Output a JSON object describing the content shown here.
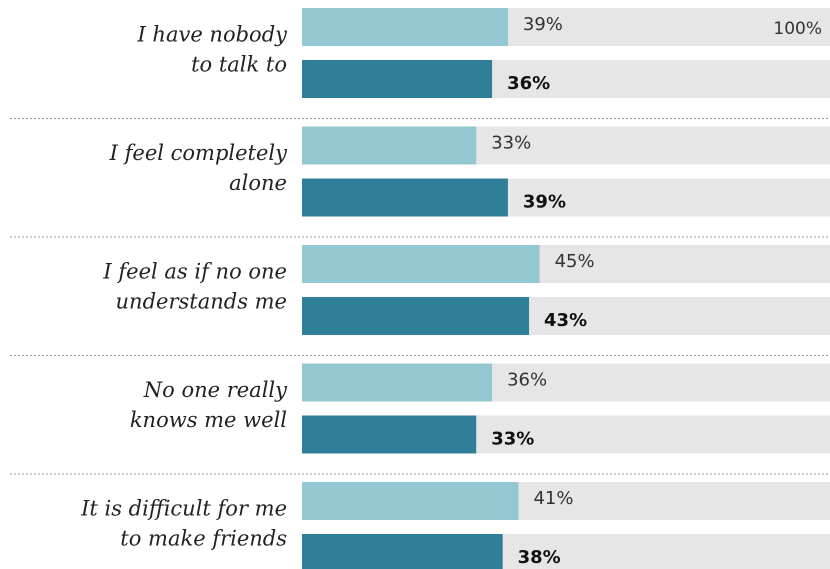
{
  "chart_data": {
    "type": "hbar-grouped",
    "categories": [
      [
        "I have nobody",
        "to talk to"
      ],
      [
        "I feel completely",
        "alone"
      ],
      [
        "I feel as if no one",
        "understands me"
      ],
      [
        "No one really",
        "knows me well"
      ],
      [
        "It is difficult for me",
        "to make friends"
      ]
    ],
    "series": [
      {
        "color": "#93c7d1",
        "values": [
          39,
          33,
          45,
          36,
          41
        ],
        "value_labels": [
          "39%",
          "33%",
          "45%",
          "36%",
          "41%"
        ]
      },
      {
        "color": "#2f7f98",
        "values": [
          36,
          39,
          43,
          33,
          38
        ],
        "value_labels": [
          "36%",
          "39%",
          "43%",
          "33%",
          "38%"
        ]
      }
    ],
    "track_color": "#e6e6e6",
    "xlim": [
      0,
      100
    ],
    "xticks": [
      {
        "value": 100,
        "label": "100%"
      }
    ]
  }
}
